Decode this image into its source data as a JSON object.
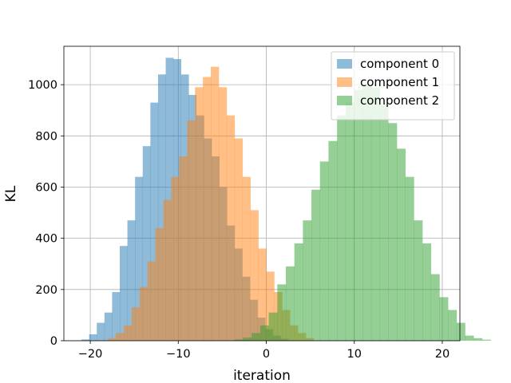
{
  "chart_data": {
    "type": "histogram",
    "xlabel": "iteration",
    "ylabel": "KL",
    "xlim": [
      -23,
      22
    ],
    "ylim": [
      0,
      1150
    ],
    "xticks": [
      -20,
      -10,
      0,
      10,
      20
    ],
    "yticks": [
      0,
      200,
      400,
      600,
      800,
      1000
    ],
    "grid": true,
    "legend_position": "top-right",
    "bar_opacity": 0.5,
    "series": [
      {
        "name": "component 0",
        "color": "#1f77b4",
        "bin_start": -21.0,
        "bin_width": 0.87,
        "counts": [
          5,
          25,
          70,
          110,
          190,
          370,
          470,
          640,
          760,
          930,
          1040,
          1105,
          1100,
          1040,
          960,
          880,
          790,
          720,
          600,
          450,
          360,
          250,
          160,
          90,
          45,
          20,
          8
        ]
      },
      {
        "name": "component 1",
        "color": "#ff7f0e",
        "bin_start": -18.0,
        "bin_width": 0.9,
        "counts": [
          10,
          30,
          60,
          130,
          210,
          310,
          440,
          550,
          640,
          720,
          860,
          990,
          1030,
          1070,
          990,
          880,
          790,
          640,
          510,
          360,
          270,
          190,
          120,
          60,
          30,
          10
        ]
      },
      {
        "name": "component 2",
        "color": "#2ca02c",
        "bin_start": -3.6,
        "bin_width": 0.97,
        "counts": [
          5,
          12,
          30,
          60,
          110,
          220,
          290,
          380,
          470,
          590,
          700,
          780,
          880,
          930,
          980,
          1000,
          990,
          920,
          850,
          750,
          640,
          470,
          380,
          260,
          170,
          120,
          70,
          20,
          10,
          4
        ]
      }
    ]
  }
}
